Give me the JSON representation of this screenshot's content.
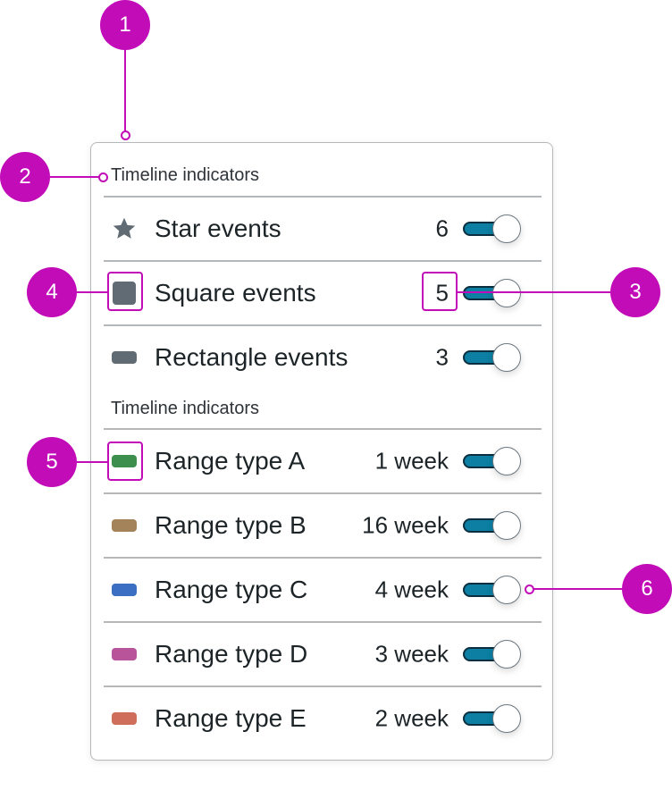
{
  "panel": {
    "section1_title": "Timeline indicators",
    "events": [
      {
        "icon": "star-icon",
        "label": "Star events",
        "count": "6",
        "enabled": true
      },
      {
        "icon": "square-icon",
        "label": "Square events",
        "count": "5",
        "enabled": true
      },
      {
        "icon": "rectangle-icon",
        "label": "Rectangle events",
        "count": "3",
        "enabled": true
      }
    ],
    "section2_title": "Timeline indicators",
    "ranges": [
      {
        "label": "Range type A",
        "duration": "1 week",
        "color": "#3d8f4e",
        "enabled": true
      },
      {
        "label": "Range type B",
        "duration": "16 week",
        "color": "#a5835a",
        "enabled": true
      },
      {
        "label": "Range type C",
        "duration": "4 week",
        "color": "#3a6fc4",
        "enabled": true
      },
      {
        "label": "Range type D",
        "duration": "3 week",
        "color": "#b8559a",
        "enabled": true
      },
      {
        "label": "Range type E",
        "duration": "2 week",
        "color": "#cf6e5a",
        "enabled": true
      }
    ],
    "icon_color": "#606b73",
    "toggle_color": "#0c7fa3"
  },
  "callouts": [
    "1",
    "2",
    "3",
    "4",
    "5",
    "6"
  ],
  "annotation_color": "#c20cb8"
}
